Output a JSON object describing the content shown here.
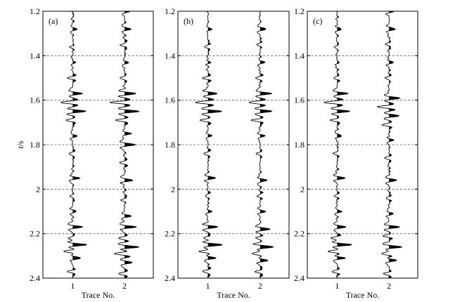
{
  "chart_data": {
    "type": "line",
    "description_free": true,
    "ylabel": "t/s",
    "xlabel": "Trace No.",
    "ylim": [
      1.2,
      2.4
    ],
    "y_ticks": [
      "1.2",
      "1.4",
      "1.6",
      "1.8",
      "2",
      "2.2",
      "2.4"
    ],
    "y_tick_values": [
      1.2,
      1.4,
      1.6,
      1.8,
      2.0,
      2.2,
      2.4
    ],
    "x_ticks": [
      "1",
      "2"
    ],
    "grid": "horizontal-dashed",
    "panels": [
      {
        "label": "(a)",
        "traces": [
          {
            "trace": "1",
            "events": [
              [
                1.28,
                0.3
              ],
              [
                1.36,
                -0.22
              ],
              [
                1.43,
                0.2
              ],
              [
                1.5,
                -0.3
              ],
              [
                1.57,
                0.7
              ],
              [
                1.61,
                -0.9
              ],
              [
                1.65,
                0.95
              ],
              [
                1.69,
                -0.55
              ],
              [
                1.76,
                0.3
              ],
              [
                1.84,
                -0.28
              ],
              [
                1.95,
                0.55
              ],
              [
                2.03,
                -0.22
              ],
              [
                2.1,
                0.28
              ],
              [
                2.17,
                0.7
              ],
              [
                2.22,
                -0.35
              ],
              [
                2.25,
                1.0
              ],
              [
                2.28,
                -0.6
              ],
              [
                2.31,
                0.55
              ],
              [
                2.37,
                -0.35
              ]
            ]
          },
          {
            "trace": "2",
            "events": [
              [
                1.2,
                0.4
              ],
              [
                1.28,
                0.45
              ],
              [
                1.35,
                -0.3
              ],
              [
                1.43,
                0.35
              ],
              [
                1.5,
                -0.4
              ],
              [
                1.57,
                0.85
              ],
              [
                1.61,
                -1.0
              ],
              [
                1.65,
                1.0
              ],
              [
                1.69,
                -0.65
              ],
              [
                1.75,
                0.45
              ],
              [
                1.8,
                0.85
              ],
              [
                1.88,
                -0.35
              ],
              [
                1.96,
                0.6
              ],
              [
                2.05,
                -0.3
              ],
              [
                2.12,
                0.4
              ],
              [
                2.17,
                0.75
              ],
              [
                2.22,
                -0.45
              ],
              [
                2.26,
                1.0
              ],
              [
                2.29,
                -0.7
              ],
              [
                2.33,
                0.6
              ],
              [
                2.38,
                -0.4
              ]
            ]
          }
        ]
      },
      {
        "label": "(b)",
        "traces": [
          {
            "trace": "1",
            "events": [
              [
                1.28,
                0.28
              ],
              [
                1.36,
                -0.22
              ],
              [
                1.43,
                0.2
              ],
              [
                1.5,
                -0.3
              ],
              [
                1.57,
                0.7
              ],
              [
                1.61,
                -0.9
              ],
              [
                1.65,
                0.95
              ],
              [
                1.69,
                -0.55
              ],
              [
                1.76,
                0.3
              ],
              [
                1.84,
                -0.28
              ],
              [
                1.95,
                0.55
              ],
              [
                2.03,
                -0.22
              ],
              [
                2.1,
                0.28
              ],
              [
                2.17,
                0.7
              ],
              [
                2.22,
                -0.35
              ],
              [
                2.25,
                1.0
              ],
              [
                2.28,
                -0.6
              ],
              [
                2.31,
                0.55
              ],
              [
                2.37,
                -0.35
              ]
            ]
          },
          {
            "trace": "2",
            "events": [
              [
                1.28,
                0.4
              ],
              [
                1.35,
                -0.25
              ],
              [
                1.43,
                0.3
              ],
              [
                1.5,
                -0.35
              ],
              [
                1.57,
                0.75
              ],
              [
                1.61,
                -0.9
              ],
              [
                1.65,
                0.85
              ],
              [
                1.69,
                -0.55
              ],
              [
                1.76,
                0.35
              ],
              [
                1.84,
                -0.3
              ],
              [
                1.96,
                0.5
              ],
              [
                2.03,
                -0.25
              ],
              [
                2.1,
                0.3
              ],
              [
                2.18,
                0.7
              ],
              [
                2.22,
                -0.35
              ],
              [
                2.26,
                0.95
              ],
              [
                2.29,
                -0.6
              ],
              [
                2.32,
                0.55
              ],
              [
                2.37,
                -0.35
              ]
            ]
          }
        ]
      },
      {
        "label": "(c)",
        "traces": [
          {
            "trace": "1",
            "events": [
              [
                1.28,
                0.28
              ],
              [
                1.36,
                -0.22
              ],
              [
                1.43,
                0.2
              ],
              [
                1.5,
                -0.3
              ],
              [
                1.57,
                0.7
              ],
              [
                1.61,
                -0.9
              ],
              [
                1.65,
                0.95
              ],
              [
                1.69,
                -0.55
              ],
              [
                1.76,
                0.3
              ],
              [
                1.84,
                -0.28
              ],
              [
                1.95,
                0.55
              ],
              [
                2.03,
                -0.22
              ],
              [
                2.1,
                0.28
              ],
              [
                2.17,
                0.7
              ],
              [
                2.22,
                -0.35
              ],
              [
                2.25,
                1.0
              ],
              [
                2.28,
                -0.6
              ],
              [
                2.31,
                0.55
              ],
              [
                2.37,
                -0.35
              ]
            ]
          },
          {
            "trace": "2",
            "events": [
              [
                1.2,
                0.3
              ],
              [
                1.28,
                0.45
              ],
              [
                1.35,
                -0.25
              ],
              [
                1.43,
                0.3
              ],
              [
                1.5,
                -0.3
              ],
              [
                1.59,
                0.8
              ],
              [
                1.63,
                -0.85
              ],
              [
                1.67,
                0.8
              ],
              [
                1.71,
                -0.45
              ],
              [
                1.78,
                0.3
              ],
              [
                1.86,
                -0.3
              ],
              [
                1.96,
                0.55
              ],
              [
                2.04,
                -0.25
              ],
              [
                2.11,
                0.3
              ],
              [
                2.17,
                0.7
              ],
              [
                2.21,
                -0.35
              ],
              [
                2.26,
                0.95
              ],
              [
                2.29,
                -0.6
              ],
              [
                2.32,
                0.55
              ],
              [
                2.38,
                -0.35
              ]
            ]
          }
        ]
      }
    ]
  },
  "style": {
    "trace_color": "#000000",
    "grid_color": "#555555",
    "background": "#ffffff"
  }
}
